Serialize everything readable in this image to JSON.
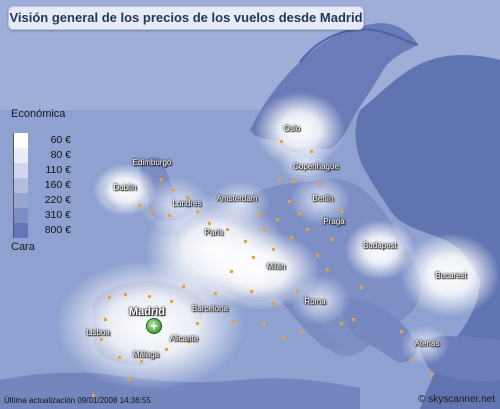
{
  "title": "Visión general de los precios de los vuelos desde Madrid",
  "legend": {
    "top_label": "Económica",
    "bottom_label": "Cara",
    "items": [
      {
        "label": "60 €",
        "color": "#ffffff"
      },
      {
        "label": "80 €",
        "color": "#ececf6"
      },
      {
        "label": "110 €",
        "color": "#d2d6ec"
      },
      {
        "label": "160 €",
        "color": "#b4bddf"
      },
      {
        "label": "220 €",
        "color": "#97a5d3"
      },
      {
        "label": "310 €",
        "color": "#7d8ec6"
      },
      {
        "label": "800 €",
        "color": "#6276b6"
      }
    ]
  },
  "origin": {
    "name": "Madrid",
    "icon": "plane-icon"
  },
  "cities": [
    {
      "name": "Oslo"
    },
    {
      "name": "Edimburgo"
    },
    {
      "name": "Copenhague"
    },
    {
      "name": "Dublín"
    },
    {
      "name": "Londres"
    },
    {
      "name": "Amsterdam"
    },
    {
      "name": "Berlín"
    },
    {
      "name": "Praga"
    },
    {
      "name": "París"
    },
    {
      "name": "Budapest"
    },
    {
      "name": "Milán"
    },
    {
      "name": "Bucarest"
    },
    {
      "name": "Roma"
    },
    {
      "name": "Barcelona"
    },
    {
      "name": "Lisboa"
    },
    {
      "name": "Alicante"
    },
    {
      "name": "Málaga"
    },
    {
      "name": "Atenas"
    }
  ],
  "footer": {
    "updated": "Última actualización 09/01/2008 14:36:55",
    "brand": "© skyscanner.net"
  },
  "colors": {
    "sea": "#7f95c8",
    "land_dark": "#5b6fad",
    "accent": "#f0a030"
  }
}
